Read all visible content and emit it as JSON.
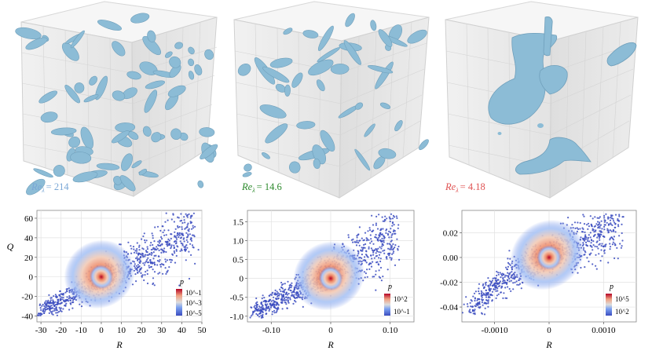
{
  "colors": {
    "blob": "#8cbcd6",
    "blob_edge": "#6f9fbb",
    "re_high": "#7aa7d6",
    "re_mid": "#2e8b2e",
    "re_low": "#e05555",
    "cmap": [
      "#3b4cc0",
      "#7aa0f0",
      "#dddddd",
      "#f0a080",
      "#b40426"
    ]
  },
  "cubes": [
    {
      "re_symbol": "Re",
      "re_subscript": "λ",
      "re_value": "= 214"
    },
    {
      "re_symbol": "Re",
      "re_subscript": "λ",
      "re_value": "= 14.6"
    },
    {
      "re_symbol": "Re",
      "re_subscript": "λ",
      "re_value": "= 4.18"
    }
  ],
  "chart_data": [
    {
      "type": "scatter",
      "title": "",
      "xlabel": "R",
      "ylabel": "Q",
      "xlim": [
        -32,
        50
      ],
      "ylim": [
        -46,
        68
      ],
      "xticks": [
        "-30",
        "-20",
        "-10",
        "0",
        "10",
        "20",
        "30",
        "40",
        "50"
      ],
      "xtick_values": [
        -30,
        -20,
        -10,
        0,
        10,
        20,
        30,
        40,
        50
      ],
      "yticks": [
        "60",
        "40",
        "20",
        "0",
        "-20",
        "-40"
      ],
      "ytick_values": [
        60,
        40,
        20,
        0,
        -20,
        -40
      ],
      "legend": {
        "title": "p",
        "position": "bottom-right",
        "labels": [
          "10^-1",
          "10^-3",
          "10^-5"
        ]
      },
      "density_center": [
        0,
        0
      ],
      "cloud_extent": {
        "x": [
          -30,
          46
        ],
        "y": [
          -40,
          66
        ]
      }
    },
    {
      "type": "scatter",
      "title": "",
      "xlabel": "R",
      "ylabel": "",
      "xlim": [
        -0.14,
        0.14
      ],
      "ylim": [
        -1.15,
        1.8
      ],
      "xticks": [
        "-0.10",
        "0",
        "0.10"
      ],
      "xtick_values": [
        -0.1,
        0,
        0.1
      ],
      "yticks": [
        "1.5",
        "1.0",
        "0.5",
        "0",
        "-0.5",
        "-1.0"
      ],
      "ytick_values": [
        1.5,
        1.0,
        0.5,
        0,
        -0.5,
        -1.0
      ],
      "legend": {
        "title": "p",
        "position": "bottom-right",
        "labels": [
          "10^2",
          "10^-1"
        ]
      },
      "density_center": [
        0,
        0
      ],
      "cloud_extent": {
        "x": [
          -0.13,
          0.11
        ],
        "y": [
          -1.05,
          1.72
        ]
      }
    },
    {
      "type": "scatter",
      "title": "",
      "xlabel": "R",
      "ylabel": "",
      "xlim": [
        -0.0016,
        0.0016
      ],
      "ylim": [
        -0.052,
        0.038
      ],
      "xticks": [
        "-0.0010",
        "0",
        "0.0010"
      ],
      "xtick_values": [
        -0.001,
        0,
        0.001
      ],
      "yticks": [
        "0.02",
        "0.00",
        "-0.02",
        "-0.04"
      ],
      "ytick_values": [
        0.02,
        0.0,
        -0.02,
        -0.04
      ],
      "legend": {
        "title": "p",
        "position": "bottom-right",
        "labels": [
          "10^5",
          "10^2"
        ]
      },
      "density_center": [
        0,
        0
      ],
      "cloud_extent": {
        "x": [
          -0.0014,
          0.0014
        ],
        "y": [
          -0.046,
          0.035
        ]
      }
    }
  ]
}
